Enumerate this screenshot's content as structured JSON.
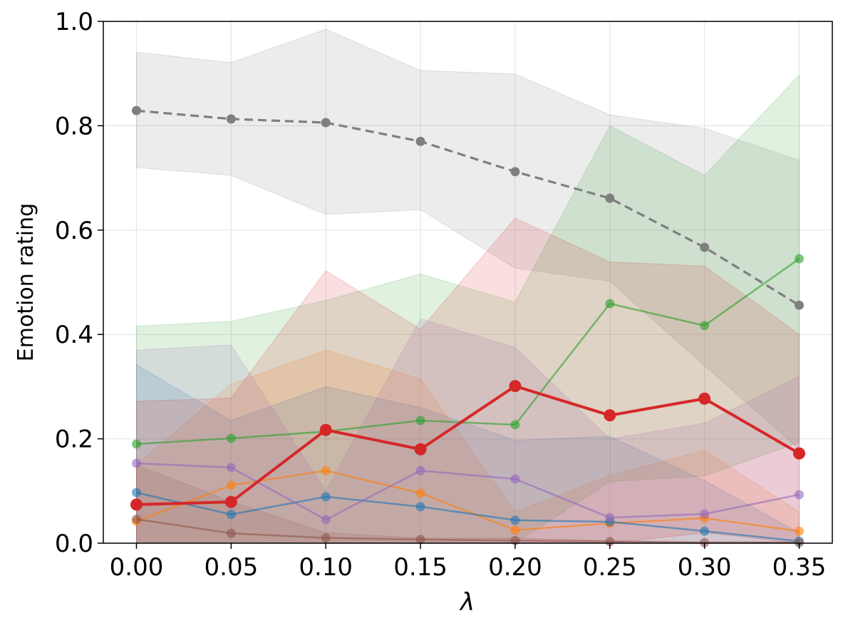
{
  "chart_data": {
    "type": "line",
    "title": "",
    "xlabel": "λ",
    "ylabel": "Emotion rating",
    "xlim": [
      -0.0175,
      0.3675
    ],
    "ylim": [
      0,
      1
    ],
    "grid": true,
    "x": [
      0.0,
      0.05,
      0.1,
      0.15,
      0.2,
      0.25,
      0.3,
      0.35
    ],
    "xticks": [
      "0.00",
      "0.05",
      "0.10",
      "0.15",
      "0.20",
      "0.25",
      "0.30",
      "0.35"
    ],
    "yticks": [
      "0.0",
      "0.2",
      "0.4",
      "0.6",
      "0.8",
      "1.0"
    ],
    "series": [
      {
        "name": "gray",
        "color": "#7f7f7f",
        "dashed": true,
        "highlight": false,
        "values": [
          0.829,
          0.813,
          0.806,
          0.77,
          0.712,
          0.661,
          0.567,
          0.456
        ],
        "upper": [
          0.941,
          0.921,
          0.985,
          0.906,
          0.899,
          0.821,
          0.795,
          0.734
        ],
        "lower": [
          0.72,
          0.705,
          0.63,
          0.639,
          0.527,
          0.502,
          0.34,
          0.18
        ]
      },
      {
        "name": "green",
        "color": "#2ca02c",
        "dashed": false,
        "highlight": false,
        "values": [
          0.19,
          0.201,
          0.214,
          0.235,
          0.227,
          0.459,
          0.417,
          0.545
        ],
        "upper": [
          0.416,
          0.425,
          0.465,
          0.516,
          0.462,
          0.8,
          0.705,
          0.897
        ],
        "lower": [
          0,
          0,
          0,
          0,
          0,
          0.118,
          0.129,
          0.193
        ]
      },
      {
        "name": "orange",
        "color": "#ff7f0e",
        "dashed": false,
        "highlight": false,
        "values": [
          0.042,
          0.111,
          0.139,
          0.096,
          0.025,
          0.038,
          0.048,
          0.023
        ],
        "upper": [
          0.15,
          0.305,
          0.37,
          0.315,
          0.06,
          0.13,
          0.178,
          0.06
        ],
        "lower": [
          0,
          0,
          0,
          0,
          0,
          0,
          0,
          0
        ]
      },
      {
        "name": "blue",
        "color": "#1f77b4",
        "dashed": false,
        "highlight": false,
        "values": [
          0.097,
          0.055,
          0.089,
          0.07,
          0.044,
          0.041,
          0.023,
          0.004
        ],
        "upper": [
          0.342,
          0.235,
          0.3,
          0.26,
          0.197,
          0.205,
          0.12,
          0.02
        ],
        "lower": [
          0,
          0,
          0,
          0,
          0,
          0,
          0,
          0
        ]
      },
      {
        "name": "purple",
        "color": "#9467bd",
        "dashed": false,
        "highlight": false,
        "values": [
          0.153,
          0.145,
          0.045,
          0.139,
          0.123,
          0.049,
          0.056,
          0.093
        ],
        "upper": [
          0.37,
          0.38,
          0.1,
          0.43,
          0.375,
          0.2,
          0.23,
          0.32
        ],
        "lower": [
          0,
          0,
          0,
          0,
          0,
          0,
          0,
          0
        ]
      },
      {
        "name": "brown",
        "color": "#8c564b",
        "dashed": false,
        "highlight": false,
        "values": [
          0.046,
          0.019,
          0.01,
          0.007,
          0.005,
          0.003,
          0.001,
          0.001
        ],
        "upper": [
          0.15,
          0.08,
          0.02,
          0.01,
          0.01,
          0.005,
          0.003,
          0.003
        ],
        "lower": [
          0,
          0,
          0,
          0,
          0,
          0,
          0,
          0
        ]
      },
      {
        "name": "red",
        "color": "#d62728",
        "dashed": false,
        "highlight": true,
        "values": [
          0.074,
          0.079,
          0.217,
          0.18,
          0.301,
          0.245,
          0.277,
          0.172
        ],
        "upper": [
          0.272,
          0.278,
          0.522,
          0.41,
          0.623,
          0.539,
          0.531,
          0.4
        ],
        "lower": [
          0,
          0,
          0,
          0,
          0,
          0,
          0.02,
          0
        ]
      }
    ]
  }
}
